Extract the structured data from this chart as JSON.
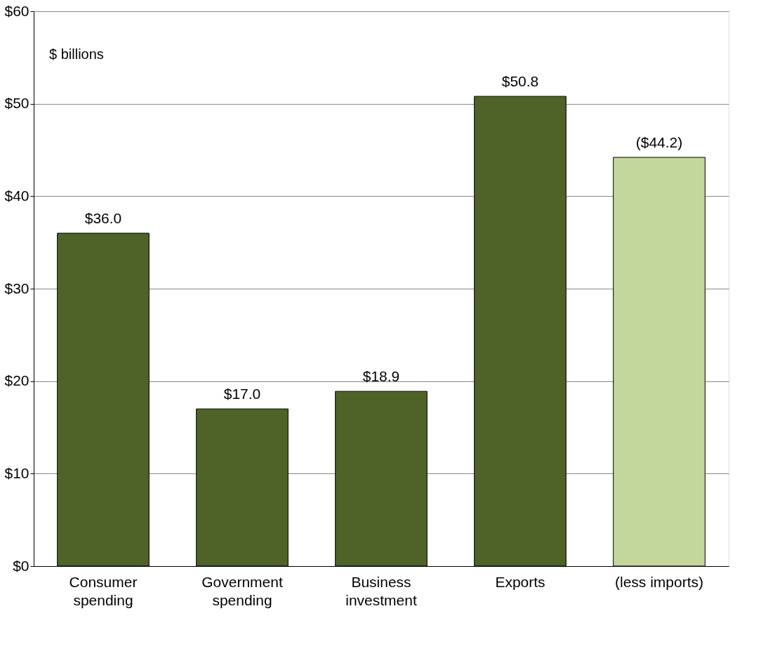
{
  "chart_data": {
    "type": "bar",
    "categories": [
      "Consumer spending",
      "Government spending",
      "Business investment",
      "Exports",
      "(less imports)"
    ],
    "values": [
      36.0,
      17.0,
      18.9,
      50.8,
      44.2
    ],
    "colors": [
      "#4f6228",
      "#4f6228",
      "#4f6228",
      "#4f6228",
      "#c3d69b"
    ],
    "value_labels": [
      "$36.0",
      "$17.0",
      "$18.9",
      "$50.8",
      "($44.2)"
    ],
    "annotations": [
      "$ billions"
    ],
    "ylim": [
      0,
      60
    ],
    "yticks": [
      {
        "value": 0,
        "label": "$0"
      },
      {
        "value": 10,
        "label": "$10"
      },
      {
        "value": 20,
        "label": "$20"
      },
      {
        "value": 30,
        "label": "$30"
      },
      {
        "value": 40,
        "label": "$40"
      },
      {
        "value": 50,
        "label": "$50"
      },
      {
        "value": 60,
        "label": "$60"
      }
    ],
    "grid": "y"
  }
}
